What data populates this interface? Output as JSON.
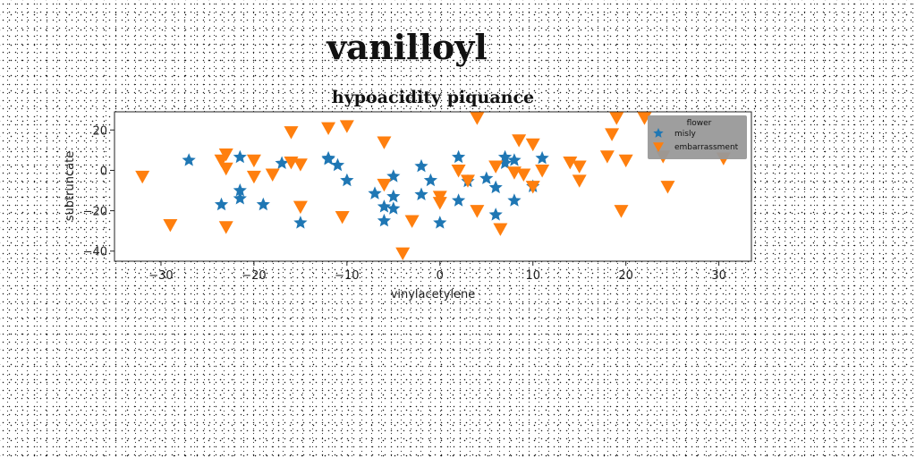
{
  "figure": {
    "suptitle": "vanilloyl"
  },
  "chart_data": {
    "type": "scatter",
    "title": "hypoacidity piquance",
    "xlabel": "vinylacetylene",
    "ylabel": "subtruncate",
    "xlim": [
      -35,
      33.5
    ],
    "ylim": [
      -45,
      29
    ],
    "xticks": [
      -30,
      -20,
      -10,
      0,
      10,
      20,
      30
    ],
    "yticks": [
      -40,
      -20,
      0,
      20
    ],
    "xtick_labels": [
      "−30",
      "−20",
      "−10",
      "0",
      "10",
      "20",
      "30"
    ],
    "ytick_labels": [
      "−40",
      "−20",
      "0",
      "20"
    ],
    "grid": false,
    "legend": {
      "title": "flower",
      "placement": "upper-right",
      "background": "#999999"
    },
    "series": [
      {
        "name": "misly",
        "marker": "star",
        "color": "#1f77b4",
        "points": [
          [
            -27,
            5
          ],
          [
            -23.5,
            -17
          ],
          [
            -21.5,
            6.5
          ],
          [
            -21.5,
            -10
          ],
          [
            -21.5,
            -14
          ],
          [
            -19,
            -17
          ],
          [
            -17,
            3.5
          ],
          [
            -15,
            -26
          ],
          [
            -12,
            6
          ],
          [
            -12,
            5.5
          ],
          [
            -11,
            2.5
          ],
          [
            -10,
            -5
          ],
          [
            -7,
            -11.5
          ],
          [
            -6,
            -18
          ],
          [
            -6,
            -25
          ],
          [
            -5,
            -13
          ],
          [
            -5,
            -19
          ],
          [
            -5,
            -3
          ],
          [
            -2,
            2
          ],
          [
            -2,
            -12
          ],
          [
            -1,
            -5
          ],
          [
            0,
            -26
          ],
          [
            2,
            -15
          ],
          [
            2,
            6.5
          ],
          [
            3,
            -5.5
          ],
          [
            5,
            -4
          ],
          [
            6,
            -8.5
          ],
          [
            6,
            -22
          ],
          [
            7,
            6.5
          ],
          [
            7,
            3.5
          ],
          [
            8,
            5
          ],
          [
            8,
            -15
          ],
          [
            10,
            -8
          ],
          [
            11,
            6
          ]
        ]
      },
      {
        "name": "embarrassment",
        "marker": "triangle-down",
        "color": "#ff7f0e",
        "points": [
          [
            -32,
            -3
          ],
          [
            -29,
            -27
          ],
          [
            -23.5,
            5
          ],
          [
            -23,
            8
          ],
          [
            -23,
            1
          ],
          [
            -23,
            -28
          ],
          [
            -20,
            5
          ],
          [
            -20,
            -3
          ],
          [
            -18,
            -2
          ],
          [
            -16,
            19
          ],
          [
            -16,
            4
          ],
          [
            -15,
            -18
          ],
          [
            -15,
            3
          ],
          [
            -12,
            21
          ],
          [
            -10,
            22
          ],
          [
            -10.5,
            -23
          ],
          [
            -6,
            14
          ],
          [
            -6,
            -7
          ],
          [
            -3,
            -25
          ],
          [
            -4,
            -41
          ],
          [
            0,
            -13
          ],
          [
            0,
            -16
          ],
          [
            2,
            0
          ],
          [
            3,
            -5
          ],
          [
            4,
            -20
          ],
          [
            4,
            26
          ],
          [
            6,
            2
          ],
          [
            6.5,
            -29
          ],
          [
            8,
            -1
          ],
          [
            8.5,
            15
          ],
          [
            9,
            -2
          ],
          [
            10,
            13
          ],
          [
            10,
            -8
          ],
          [
            11,
            0
          ],
          [
            14,
            4
          ],
          [
            15,
            2
          ],
          [
            15,
            -5
          ],
          [
            18,
            7
          ],
          [
            18.5,
            18
          ],
          [
            19,
            26
          ],
          [
            19.5,
            -20
          ],
          [
            20,
            5
          ],
          [
            22,
            26
          ],
          [
            24,
            7
          ],
          [
            24.5,
            -8
          ],
          [
            30.5,
            6
          ]
        ]
      }
    ]
  }
}
